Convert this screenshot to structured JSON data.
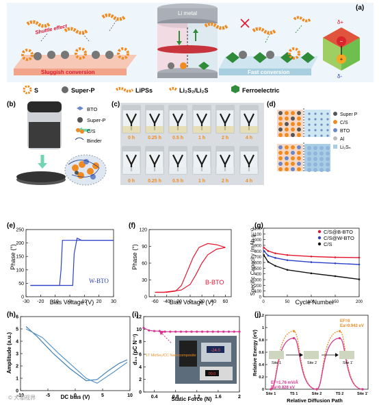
{
  "panel_labels": [
    "(a)",
    "(b)",
    "(c)",
    "(d)",
    "(e)",
    "(f)",
    "(g)",
    "(h)",
    "(i)",
    "(j)"
  ],
  "panel_a": {
    "li_metal": "Li metal",
    "shuttle_effect": "Shuttle effect",
    "sluggish": "Sluggish conversion",
    "fast": "Fast conversion",
    "delta_plus": "δ+",
    "delta_minus": "δ-",
    "minus": "−",
    "plus": "+"
  },
  "legend_a": {
    "s": "S",
    "superp": "Super-P",
    "lipss": "LiPSs",
    "li2s": "Li₂S₂/Li₂S",
    "ferro": "Ferroelectric"
  },
  "panel_b": {
    "items": [
      "BTO",
      "Super-P",
      "C/S",
      "Binder"
    ]
  },
  "panel_c": {
    "times": [
      "0 h",
      "0.25 h",
      "0.5 h",
      "1 h",
      "2 h",
      "4 h"
    ]
  },
  "panel_d": {
    "legend": [
      "Super P",
      "C/S",
      "BTO",
      "Al",
      "Li₂Sₙ"
    ]
  },
  "panel_e": {
    "label": "W-BTO",
    "xlabel": "Bias Voltage (V)",
    "ylabel": "Phase (°)"
  },
  "panel_f": {
    "label": "B-BTO",
    "xlabel": "Bias Voltage (V)",
    "ylabel": "Phase (°)"
  },
  "panel_h": {
    "xlabel": "DC bias (V)",
    "ylabel": "Amplitude (a.u.)"
  },
  "panel_i": {
    "xlabel": "Static Force (N)",
    "ylabel": "d₃₃ (pC N⁻¹)",
    "inset_note": "1T MoSe₂/CC Nanocomposite",
    "inset_display_1": "-24.0",
    "inset_display_2": "00.0"
  },
  "panel_j": {
    "xlabel": "Relative Diffusion Path",
    "ylabel": "Relative Energy (eV)",
    "ef0_1": "EF=0",
    "ef0_2": "Ea=0.942 eV",
    "ef1_1": "EF=1.76 mV/Å",
    "ef1_2": "Ea=0.828 eV",
    "sites": [
      "Site 1",
      "TS 1",
      "Site 2",
      "TS 2",
      "Site 1'"
    ],
    "site_labels": [
      "Site 1",
      "Site 2",
      "Site 1'"
    ]
  },
  "watermark": "© 大咖视界",
  "colors": {
    "red": "#e5142d",
    "blue": "#2b3ec8",
    "black": "#111111",
    "magenta": "#d6338f",
    "orange": "#f08b22",
    "green": "#2f8a3a"
  },
  "chart_data": [
    {
      "id": "e",
      "type": "line",
      "xlabel": "Bias Voltage (V)",
      "ylabel": "Phase (°)",
      "xlim": [
        -30,
        30
      ],
      "ylim": [
        0,
        250
      ],
      "xticks": [
        -30,
        -20,
        -10,
        0,
        10,
        20,
        30
      ],
      "yticks": [
        0,
        50,
        100,
        150,
        200,
        250
      ],
      "series": [
        {
          "name": "W-BTO",
          "x": [
            -27,
            -10,
            -7,
            -6,
            -5,
            5,
            10,
            20,
            30
          ],
          "y": [
            42,
            42,
            42,
            100,
            210,
            210,
            210,
            210,
            210
          ]
        },
        {
          "name": "W-BTO return",
          "x": [
            30,
            8,
            5,
            3,
            2,
            0,
            -10,
            -27
          ],
          "y": [
            210,
            210,
            218,
            160,
            42,
            42,
            42,
            42
          ]
        }
      ]
    },
    {
      "id": "f",
      "type": "line",
      "xlabel": "Bias Voltage (V)",
      "ylabel": "Phase (°)",
      "xlim": [
        -70,
        70
      ],
      "ylim": [
        0,
        120
      ],
      "xticks": [
        -60,
        -40,
        -20,
        0,
        20,
        40,
        60
      ],
      "yticks": [
        0,
        30,
        60,
        90,
        120
      ],
      "series": [
        {
          "name": "B-BTO",
          "x": [
            -60,
            -40,
            -25,
            -15,
            -5,
            5,
            15,
            30,
            45,
            60
          ],
          "y": [
            8,
            8,
            10,
            20,
            45,
            70,
            88,
            95,
            93,
            88
          ]
        },
        {
          "name": "B-BTO return",
          "x": [
            60,
            45,
            30,
            20,
            10,
            0,
            -15,
            -30,
            -45,
            -60
          ],
          "y": [
            88,
            85,
            75,
            60,
            40,
            22,
            12,
            10,
            8,
            8
          ]
        }
      ]
    },
    {
      "id": "g",
      "type": "line",
      "xlabel": "Cycle Number",
      "ylabel": "Specific Capacity (mAh g⁻¹)",
      "xlim": [
        0,
        200
      ],
      "ylim": [
        0,
        1200
      ],
      "xticks": [
        0,
        50,
        100,
        150,
        200
      ],
      "yticks": [
        0,
        100,
        200,
        300,
        400,
        500,
        600,
        700,
        800,
        900,
        1000,
        1100,
        1200
      ],
      "series": [
        {
          "name": "C/S@B-BTO",
          "x": [
            1,
            10,
            25,
            50,
            100,
            150,
            200
          ],
          "y": [
            860,
            800,
            760,
            730,
            705,
            690,
            685
          ]
        },
        {
          "name": "C/S@W-BTO",
          "x": [
            1,
            10,
            25,
            50,
            100,
            150,
            200
          ],
          "y": [
            800,
            720,
            680,
            640,
            605,
            585,
            565
          ]
        },
        {
          "name": "C/S",
          "x": [
            1,
            10,
            25,
            50,
            100,
            150,
            200
          ],
          "y": [
            730,
            610,
            540,
            470,
            410,
            360,
            305
          ]
        }
      ]
    },
    {
      "id": "h",
      "type": "line",
      "xlabel": "DC bias (V)",
      "ylabel": "Amplitude (a.u.)",
      "xlim": [
        -10,
        10
      ],
      "ylim": [
        0,
        6
      ],
      "xticks": [
        -10,
        -5,
        0,
        5,
        10
      ],
      "yticks": [
        0,
        1,
        2,
        3,
        4,
        5,
        6
      ],
      "series": [
        {
          "name": "loop1",
          "x": [
            -9,
            -7,
            -4,
            -1,
            2,
            4,
            6,
            8,
            9.5
          ],
          "y": [
            5.2,
            4.4,
            3.0,
            1.8,
            0.8,
            0.9,
            1.6,
            2.2,
            2.5
          ]
        },
        {
          "name": "loop2",
          "x": [
            9.5,
            7,
            4,
            2,
            0,
            -3,
            -6,
            -9
          ],
          "y": [
            2.3,
            1.5,
            0.6,
            1.0,
            1.8,
            3.0,
            4.3,
            5.0
          ]
        }
      ]
    },
    {
      "id": "i",
      "type": "line",
      "xlabel": "Static Force (N)",
      "ylabel": "d₃₃ (pC N⁻¹)",
      "xlim": [
        0.2,
        2.0
      ],
      "ylim": [
        0,
        12
      ],
      "xticks": [
        0.4,
        0.8,
        1.2,
        1.6,
        2.0
      ],
      "yticks": [
        0,
        2,
        4,
        6,
        8,
        10,
        12
      ],
      "series": [
        {
          "name": "d33",
          "x": [
            0.2,
            0.3,
            0.4,
            0.5,
            0.6,
            0.7,
            0.8,
            0.9,
            1.0,
            1.1,
            1.2,
            1.3,
            1.4,
            1.5,
            1.6,
            1.7,
            1.8,
            1.9,
            2.0
          ],
          "y": [
            10.2,
            9.8,
            9.7,
            9.7,
            9.6,
            9.6,
            9.6,
            9.6,
            9.6,
            9.6,
            9.6,
            9.6,
            9.6,
            9.6,
            9.6,
            9.6,
            9.6,
            9.6,
            9.6
          ]
        }
      ]
    },
    {
      "id": "j",
      "type": "line",
      "xlabel": "Relative Diffusion Path",
      "ylabel": "Relative Energy (eV)",
      "ylim": [
        0,
        1.2
      ],
      "yticks": [
        0,
        0.2,
        0.4,
        0.6,
        0.8,
        1.0,
        1.2
      ],
      "categories": [
        "Site 1",
        "TS 1",
        "Site 2",
        "TS 2",
        "Site 1'"
      ],
      "series": [
        {
          "name": "EF=0",
          "values": [
            0,
            0.942,
            0,
            0.942,
            0
          ]
        },
        {
          "name": "EF=1.76 mV/Å",
          "values": [
            0,
            0.828,
            0,
            0.828,
            0
          ]
        }
      ]
    }
  ]
}
